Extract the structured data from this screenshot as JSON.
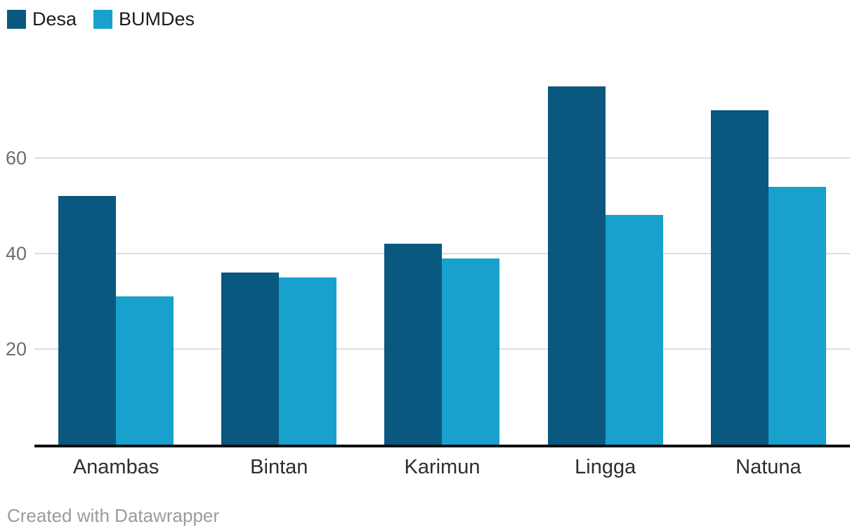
{
  "legend": {
    "items": [
      {
        "label": "Desa",
        "color": "#0a5880"
      },
      {
        "label": "BUMDes",
        "color": "#18a1cd"
      }
    ]
  },
  "footer": {
    "credit": "Created with Datawrapper"
  },
  "chart_data": {
    "type": "bar",
    "title": "",
    "xlabel": "",
    "ylabel": "",
    "categories": [
      "Anambas",
      "Bintan",
      "Karimun",
      "Lingga",
      "Natuna"
    ],
    "series": [
      {
        "name": "Desa",
        "color": "#0a5880",
        "values": [
          52,
          36,
          42,
          75,
          70
        ]
      },
      {
        "name": "BUMDes",
        "color": "#18a1cd",
        "values": [
          31,
          35,
          39,
          48,
          54
        ]
      }
    ],
    "ylim": [
      0,
      93
    ],
    "yticks": [
      20,
      40,
      60
    ],
    "grid": true,
    "legend_position": "top-left",
    "gridline_color": "#dddddd",
    "axis_line_color": "#0f0f0f"
  }
}
